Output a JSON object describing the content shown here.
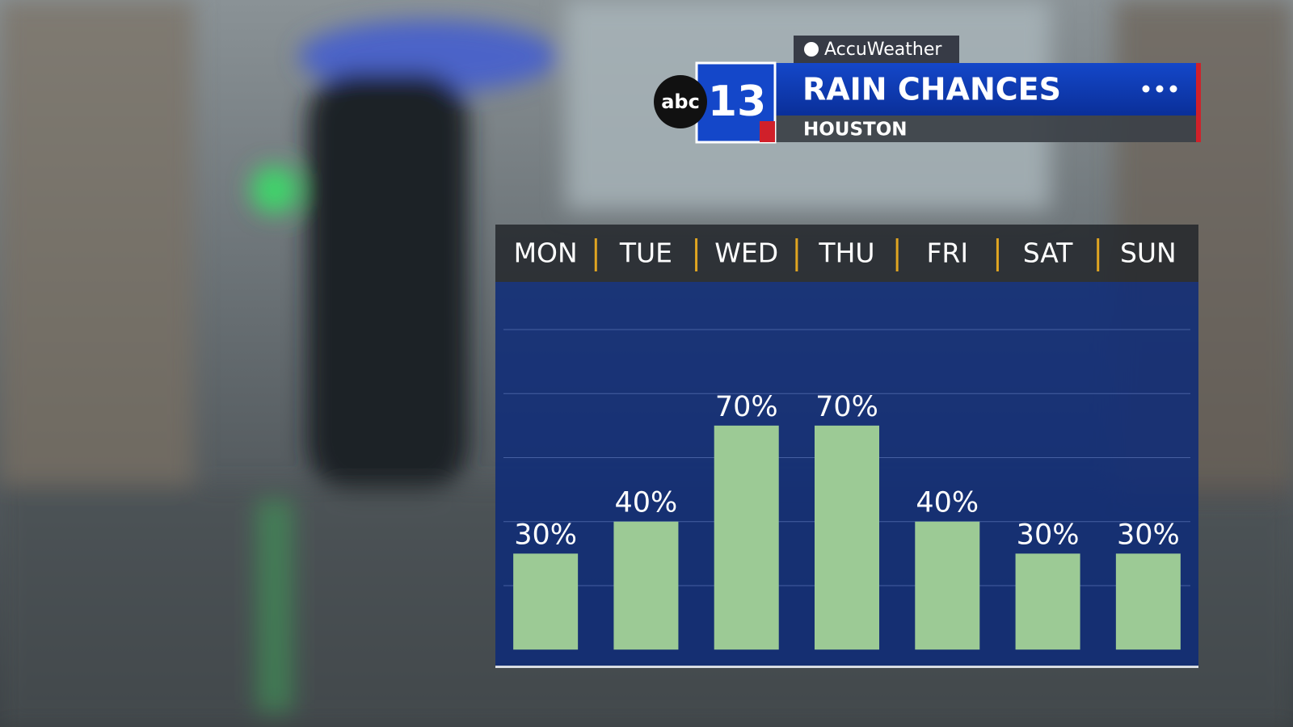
{
  "chart_data": {
    "type": "bar",
    "title": "RAIN CHANCES",
    "subtitle": "HOUSTON",
    "brand": "AccuWeather",
    "logo_network": "abc",
    "logo_channel": "13",
    "categories": [
      "MON",
      "TUE",
      "WED",
      "THU",
      "FRI",
      "SAT",
      "SUN"
    ],
    "values": [
      30,
      40,
      70,
      70,
      40,
      30,
      30
    ],
    "value_labels": [
      "30%",
      "40%",
      "70%",
      "70%",
      "40%",
      "30%",
      "30%"
    ],
    "color": "#9cca95",
    "ylim": [
      -5,
      100
    ],
    "yticks": [
      20,
      40,
      60,
      80,
      100
    ],
    "grid": true
  }
}
